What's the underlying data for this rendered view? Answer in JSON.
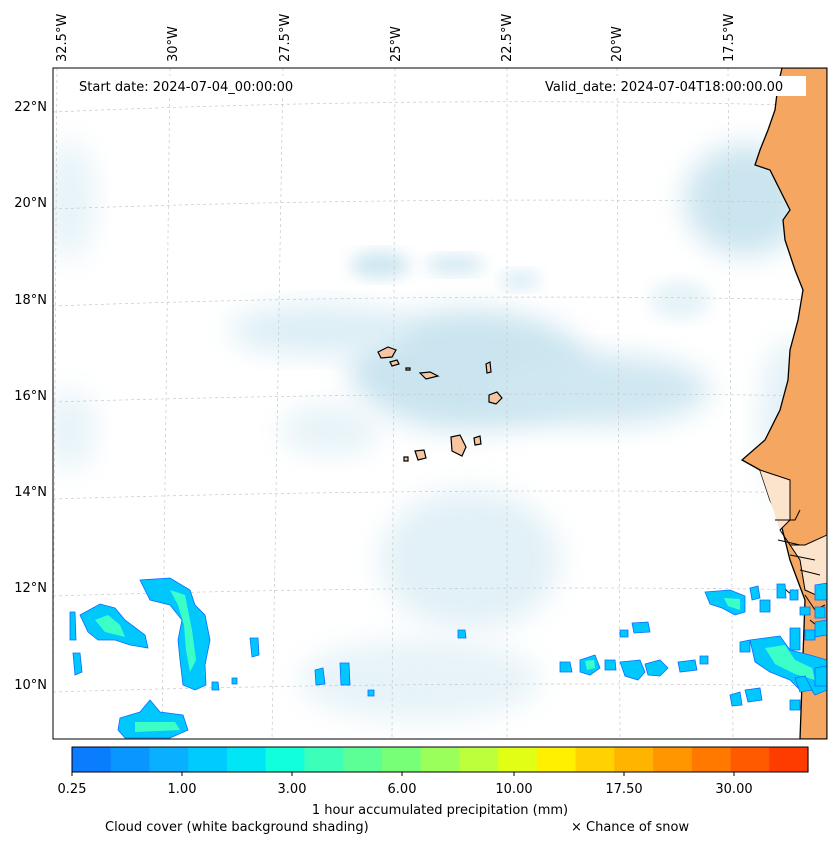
{
  "header": {
    "start_date": "Start date: 2024-07-04_00:00:00",
    "valid_date": "Valid_date: 2024-07-04T18:00:00.00"
  },
  "axes": {
    "lon_labels": [
      "32.5°W",
      "30°W",
      "27.5°W",
      "25°W",
      "22.5°W",
      "20°W",
      "17.5°W"
    ],
    "lat_labels": [
      "22°N",
      "20°N",
      "18°N",
      "16°N",
      "14°N",
      "12°N",
      "10°N"
    ]
  },
  "colorbar": {
    "title": "1 hour accumulated precipitation (mm)",
    "tick_labels": [
      "0.25",
      "1.00",
      "3.00",
      "6.00",
      "10.00",
      "17.50",
      "30.00"
    ],
    "colors": [
      "#0a7dff",
      "#0a96ff",
      "#0ab0ff",
      "#00cbff",
      "#00e6f5",
      "#12ffdc",
      "#3cffb9",
      "#5cff96",
      "#78ff78",
      "#9aff5a",
      "#beff3c",
      "#e1ff14",
      "#fff000",
      "#ffd200",
      "#ffb400",
      "#ff9600",
      "#ff7800",
      "#ff5a00",
      "#ff3c00"
    ]
  },
  "footer": {
    "cloud_note": "Cloud cover (white background shading)",
    "snow_note": "× Chance of snow"
  },
  "map": {
    "land_color": "#f5a660",
    "cloud_color": "#c9e4ef",
    "precip_light_color": "#00c8ff",
    "precip_mid_color": "#3cffc8"
  }
}
